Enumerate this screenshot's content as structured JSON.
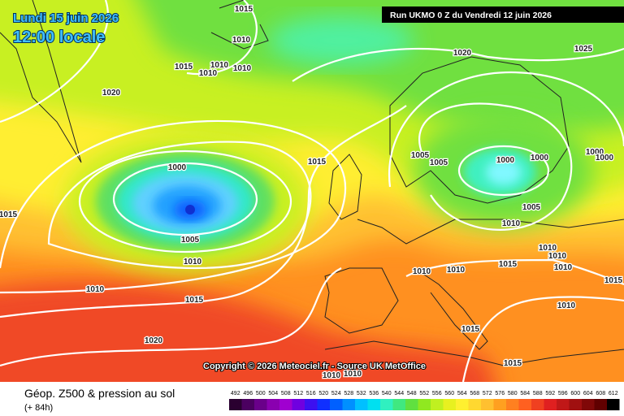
{
  "header": {
    "date": "Lundi 15 juin 2026",
    "time": "12:00 locale",
    "run": "Run UKMO 0 Z du Vendredi 12 juin 2026"
  },
  "copyright": "Copyright © 2026 Meteociel.fr - Source UK MetOffice",
  "legend": {
    "title": "Géop. Z500 & pression au sol",
    "lead": "(+ 84h)",
    "scale": [
      492,
      496,
      500,
      504,
      508,
      512,
      516,
      520,
      524,
      528,
      532,
      536,
      540,
      544,
      548,
      552,
      556,
      560,
      564,
      568,
      572,
      576,
      580,
      584,
      588,
      592,
      596,
      600,
      604,
      608,
      612
    ],
    "colors": [
      "#2a0030",
      "#4b0060",
      "#6a008a",
      "#8a00b0",
      "#a000d0",
      "#7000e0",
      "#3c10f0",
      "#1030ff",
      "#0060ff",
      "#0090ff",
      "#00c0ff",
      "#00e0f0",
      "#30f0c0",
      "#40e880",
      "#60e040",
      "#90e820",
      "#c0f020",
      "#e8f020",
      "#fff030",
      "#ffd830",
      "#ffc030",
      "#ffa020",
      "#ff8020",
      "#ff6020",
      "#f04020",
      "#e02020",
      "#c01818",
      "#a01010",
      "#800808",
      "#600000",
      "#000000"
    ]
  },
  "isobars": [
    "1015",
    "1010",
    "1015",
    "1010",
    "1010",
    "1010",
    "1020",
    "1020",
    "1025",
    "1000",
    "1015",
    "1005",
    "1010",
    "1010",
    "1015",
    "1020",
    "1015",
    "1005",
    "1005",
    "1000",
    "1000",
    "1000",
    "1000",
    "1005",
    "1010",
    "1010",
    "1010",
    "1010",
    "1015",
    "1010",
    "1010",
    "1015",
    "1010",
    "1015",
    "1015",
    "1010",
    "1010"
  ]
}
